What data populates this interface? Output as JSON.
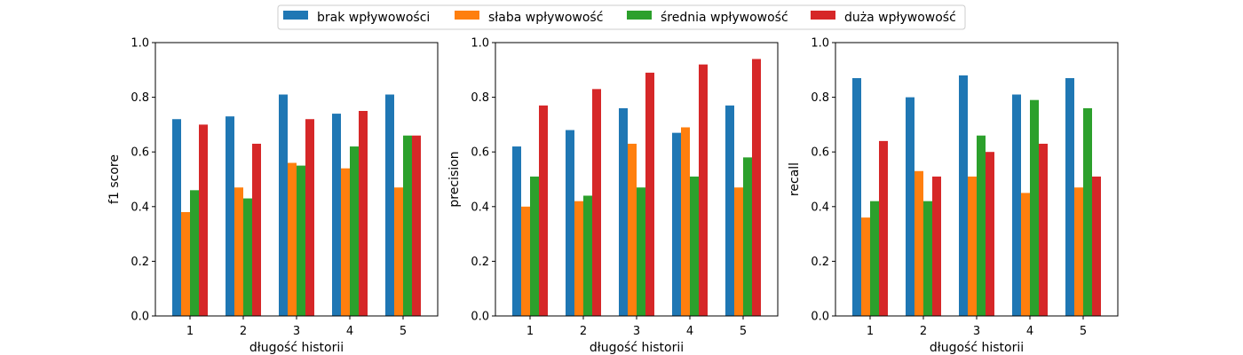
{
  "legend": {
    "placement": "top-center",
    "entries": [
      {
        "label": "brak wpływowości",
        "color": "#1f77b4"
      },
      {
        "label": "słaba wpływowość",
        "color": "#ff7f0e"
      },
      {
        "label": "średnia wpływowość",
        "color": "#2ca02c"
      },
      {
        "label": "duża wpływowość",
        "color": "#d62728"
      }
    ]
  },
  "chart_data": [
    {
      "type": "bar",
      "xlabel": "długość historii",
      "ylabel": "f1 score",
      "ylim": [
        0,
        1
      ],
      "yticks": [
        "0.0",
        "0.2",
        "0.4",
        "0.6",
        "0.8",
        "1.0"
      ],
      "categories": [
        "1",
        "2",
        "3",
        "4",
        "5"
      ],
      "grid": false,
      "series": [
        {
          "name": "brak wpływowości",
          "color": "#1f77b4",
          "values": [
            0.72,
            0.73,
            0.81,
            0.74,
            0.81
          ]
        },
        {
          "name": "słaba wpływowość",
          "color": "#ff7f0e",
          "values": [
            0.38,
            0.47,
            0.56,
            0.54,
            0.47
          ]
        },
        {
          "name": "średnia wpływowość",
          "color": "#2ca02c",
          "values": [
            0.46,
            0.43,
            0.55,
            0.62,
            0.66
          ]
        },
        {
          "name": "duża wpływowość",
          "color": "#d62728",
          "values": [
            0.7,
            0.63,
            0.72,
            0.75,
            0.66
          ]
        }
      ]
    },
    {
      "type": "bar",
      "xlabel": "długość historii",
      "ylabel": "precision",
      "ylim": [
        0,
        1
      ],
      "yticks": [
        "0.0",
        "0.2",
        "0.4",
        "0.6",
        "0.8",
        "1.0"
      ],
      "categories": [
        "1",
        "2",
        "3",
        "4",
        "5"
      ],
      "grid": false,
      "series": [
        {
          "name": "brak wpływowości",
          "color": "#1f77b4",
          "values": [
            0.62,
            0.68,
            0.76,
            0.67,
            0.77
          ]
        },
        {
          "name": "słaba wpływowość",
          "color": "#ff7f0e",
          "values": [
            0.4,
            0.42,
            0.63,
            0.69,
            0.47
          ]
        },
        {
          "name": "średnia wpływowość",
          "color": "#2ca02c",
          "values": [
            0.51,
            0.44,
            0.47,
            0.51,
            0.58
          ]
        },
        {
          "name": "duża wpływowość",
          "color": "#d62728",
          "values": [
            0.77,
            0.83,
            0.89,
            0.92,
            0.94
          ]
        }
      ]
    },
    {
      "type": "bar",
      "xlabel": "długość historii",
      "ylabel": "recall",
      "ylim": [
        0,
        1
      ],
      "yticks": [
        "0.0",
        "0.2",
        "0.4",
        "0.6",
        "0.8",
        "1.0"
      ],
      "categories": [
        "1",
        "2",
        "3",
        "4",
        "5"
      ],
      "grid": false,
      "series": [
        {
          "name": "brak wpływowości",
          "color": "#1f77b4",
          "values": [
            0.87,
            0.8,
            0.88,
            0.81,
            0.87
          ]
        },
        {
          "name": "słaba wpływowość",
          "color": "#ff7f0e",
          "values": [
            0.36,
            0.53,
            0.51,
            0.45,
            0.47
          ]
        },
        {
          "name": "średnia wpływowość",
          "color": "#2ca02c",
          "values": [
            0.42,
            0.42,
            0.66,
            0.79,
            0.76
          ]
        },
        {
          "name": "duża wpływowość",
          "color": "#d62728",
          "values": [
            0.64,
            0.51,
            0.6,
            0.63,
            0.51
          ]
        }
      ]
    }
  ]
}
